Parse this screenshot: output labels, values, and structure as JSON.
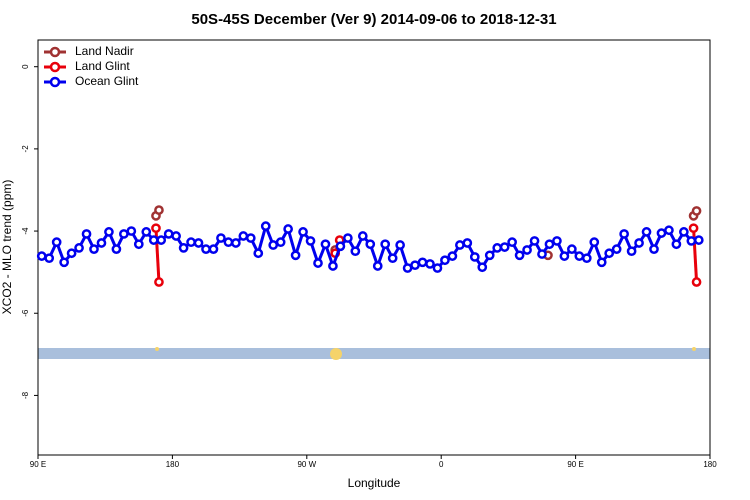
{
  "chart_data": {
    "type": "line",
    "title": "50S-45S December (Ver 9)   2014-09-06 to 2018-12-31",
    "x_label": "Longitude",
    "y_label": "XCO2 - MLO trend (ppm)",
    "xlim": [
      90,
      540
    ],
    "xticks": [
      {
        "value": 90,
        "label": "90 E"
      },
      180,
      {
        "value": 270,
        "label": "90 W"
      },
      {
        "value": 360,
        "label": "0"
      },
      {
        "value": 450,
        "label": "90 E"
      },
      {
        "value": 540,
        "label": "180"
      }
    ],
    "ylim": [
      -9.45,
      0.65
    ],
    "yticks": [
      0,
      -2,
      -4,
      -6,
      -8
    ],
    "legend": "top-left",
    "series": [
      {
        "name": "Land Nadir",
        "color": "#a03232",
        "x": [
          169,
          171,
          null,
          289,
          null,
          431.5,
          null,
          529,
          531
        ],
        "values": [
          -3.63,
          -3.49,
          null,
          -4.46,
          null,
          -4.59,
          null,
          -3.63,
          -3.51
        ]
      },
      {
        "name": "Land Glint",
        "color": "#e8000b",
        "x": [
          169,
          171,
          null,
          289,
          292,
          null,
          529,
          531
        ],
        "values": [
          -3.93,
          -5.24,
          null,
          -4.54,
          -4.22,
          null,
          -3.93,
          -5.24
        ]
      },
      {
        "name": "Ocean Glint",
        "color": "#0000ee",
        "x": [
          92.5,
          97.5,
          102.5,
          107.5,
          112.5,
          117.5,
          122.5,
          127.5,
          132.5,
          137.5,
          142.5,
          147.5,
          152.5,
          157.5,
          162.5,
          167.5,
          172.5,
          177.5,
          182.5,
          187.5,
          192.5,
          197.5,
          202.5,
          207.5,
          212.5,
          217.5,
          222.5,
          227.5,
          232.5,
          237.5,
          242.5,
          247.5,
          252.5,
          257.5,
          262.5,
          267.5,
          272.5,
          277.5,
          282.5,
          287.5,
          292.5,
          297.5,
          302.5,
          307.5,
          312.5,
          317.5,
          322.5,
          327.5,
          332.5,
          337.5,
          342.5,
          347.5,
          352.5,
          357.5,
          362.5,
          367.5,
          372.5,
          377.5,
          382.5,
          387.5,
          392.5,
          397.5,
          402.5,
          407.5,
          412.5,
          417.5,
          422.5,
          427.5,
          432.5,
          437.5,
          442.5,
          447.5,
          452.5,
          457.5,
          462.5,
          467.5,
          472.5,
          477.5,
          482.5,
          487.5,
          492.5,
          497.5,
          502.5,
          507.5,
          512.5,
          517.5,
          522.5,
          527.5,
          532.5
        ],
        "values": [
          -4.61,
          -4.66,
          -4.27,
          -4.76,
          -4.54,
          -4.41,
          -4.07,
          -4.44,
          -4.29,
          -4.02,
          -4.44,
          -4.07,
          -4.0,
          -4.32,
          -4.02,
          -4.22,
          -4.22,
          -4.07,
          -4.12,
          -4.41,
          -4.27,
          -4.29,
          -4.44,
          -4.44,
          -4.17,
          -4.27,
          -4.29,
          -4.12,
          -4.17,
          -4.54,
          -3.88,
          -4.34,
          -4.27,
          -3.95,
          -4.59,
          -4.02,
          -4.24,
          -4.78,
          -4.32,
          -4.85,
          -4.37,
          -4.17,
          -4.49,
          -4.12,
          -4.32,
          -4.85,
          -4.32,
          -4.66,
          -4.34,
          -4.9,
          -4.83,
          -4.76,
          -4.8,
          -4.9,
          -4.71,
          -4.61,
          -4.34,
          -4.29,
          -4.63,
          -4.88,
          -4.59,
          -4.41,
          -4.39,
          -4.27,
          -4.59,
          -4.46,
          -4.24,
          -4.56,
          -4.32,
          -4.24,
          -4.61,
          -4.44,
          -4.61,
          -4.66,
          -4.27,
          -4.76,
          -4.54,
          -4.44,
          -4.07,
          -4.49,
          -4.29,
          -4.02,
          -4.44,
          -4.05,
          -3.98,
          -4.32,
          -4.02,
          -4.24,
          -4.22
        ]
      }
    ]
  }
}
